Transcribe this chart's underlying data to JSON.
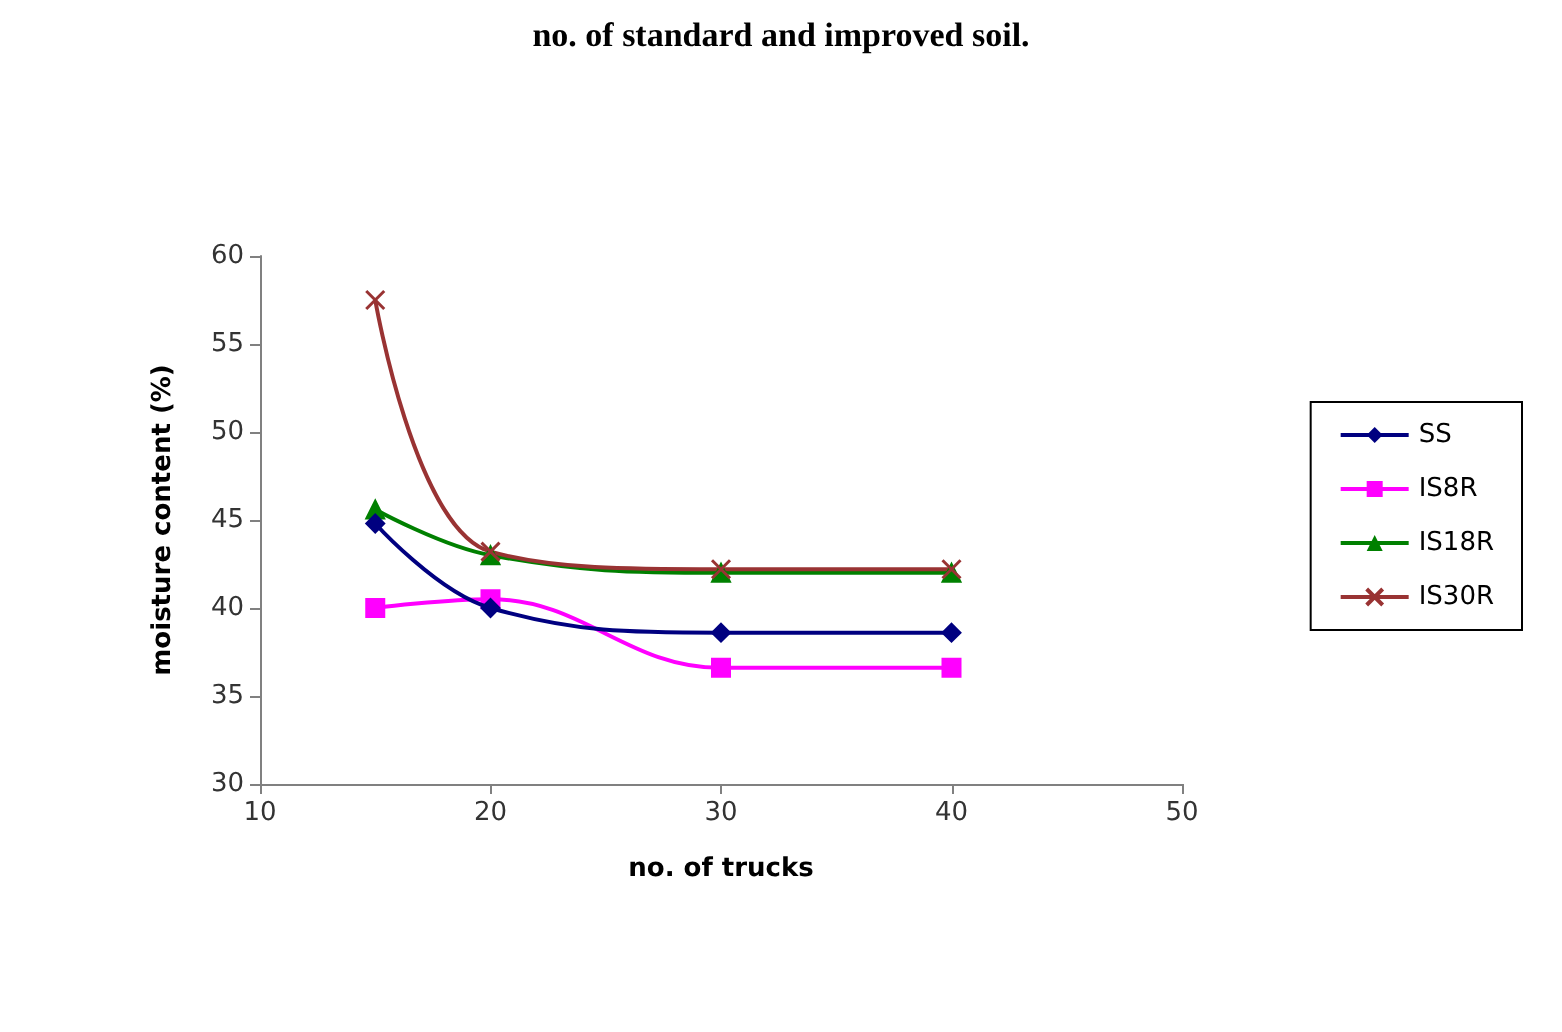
{
  "chart_data": {
    "type": "line",
    "title": "no. of standard and improved soil.",
    "xlabel": "no. of trucks",
    "ylabel": "moisture content (%)",
    "x": [
      15,
      20,
      30,
      40
    ],
    "series": [
      {
        "name": "SS",
        "color": "#000080",
        "marker": "diamond",
        "values": [
          44.8,
          40,
          38.6,
          38.6
        ]
      },
      {
        "name": "IS8R",
        "color": "#ff00ff",
        "marker": "square",
        "values": [
          40,
          40.5,
          36.6,
          36.6
        ]
      },
      {
        "name": "IS18R",
        "color": "#008000",
        "marker": "triangle",
        "values": [
          45.6,
          43,
          42,
          42
        ]
      },
      {
        "name": "IS30R",
        "color": "#993333",
        "marker": "cross",
        "values": [
          57.5,
          43.2,
          42.2,
          42.2
        ]
      }
    ],
    "xlim": [
      10,
      50
    ],
    "xticks": [
      10,
      20,
      30,
      40,
      50
    ],
    "ylim": [
      30,
      60
    ],
    "yticks": [
      30,
      35,
      40,
      45,
      50,
      55,
      60
    ],
    "grid": false,
    "legend": "right",
    "line_style": "solid"
  }
}
